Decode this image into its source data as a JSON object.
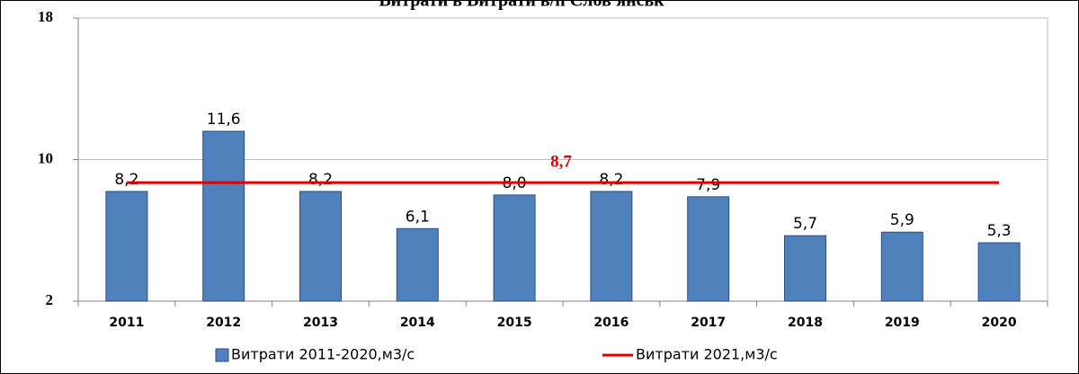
{
  "chart_data": {
    "type": "bar",
    "title": "Витрати в Витрати в/п Слов'янськ",
    "categories": [
      "2011",
      "2012",
      "2013",
      "2014",
      "2015",
      "2016",
      "2017",
      "2018",
      "2019",
      "2020"
    ],
    "series": [
      {
        "name": "Витрати 2011-2020,м3/с",
        "type": "bar",
        "color": "#4f81bd",
        "values": [
          8.2,
          11.6,
          8.2,
          6.1,
          8.0,
          8.2,
          7.9,
          5.7,
          5.9,
          5.3
        ],
        "value_labels": [
          "8,2",
          "11,6",
          "8,2",
          "6,1",
          "8,0",
          "8,2",
          "7,9",
          "5,7",
          "5,9",
          "5,3"
        ]
      },
      {
        "name": "Витрати 2021,м3/с",
        "type": "line",
        "color": "#e00000",
        "values": [
          8.7,
          8.7,
          8.7,
          8.7,
          8.7,
          8.7,
          8.7,
          8.7,
          8.7,
          8.7
        ],
        "label": "8,7"
      }
    ],
    "ylim": [
      2,
      18
    ],
    "yticks": [
      2,
      10,
      18
    ],
    "grid": true,
    "legend": "bottom"
  }
}
